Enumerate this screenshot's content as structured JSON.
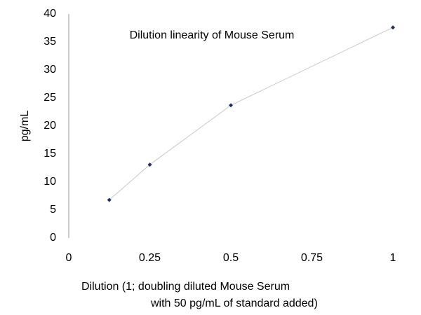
{
  "chart_data": {
    "type": "line",
    "title": "Dilution linearity of Mouse Serum",
    "xlabel": [
      "Dilution (1; doubling diluted Mouse Serum",
      "with 50 pg/mL of standard added)"
    ],
    "ylabel": "pg/mL",
    "x": [
      0.125,
      0.25,
      0.5,
      1
    ],
    "series": [
      {
        "color": "#1f2d6b",
        "line_color": "#c8c8c8",
        "values": [
          6.8,
          13.1,
          23.7,
          37.6
        ]
      }
    ],
    "xlim": [
      0,
      1
    ],
    "xticks": [
      0,
      0.25,
      0.5,
      0.75,
      1
    ],
    "ylim": [
      0,
      40
    ],
    "yticks": [
      0,
      5,
      10,
      15,
      20,
      25,
      30,
      35,
      40
    ],
    "grid": false
  }
}
